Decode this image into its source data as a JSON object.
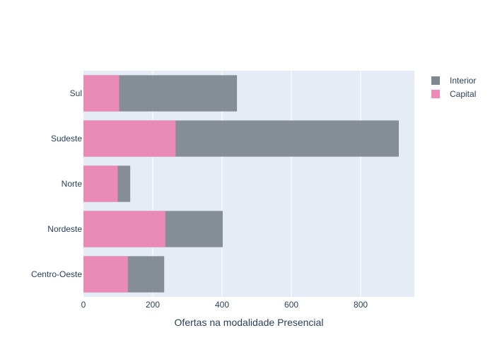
{
  "chart_data": {
    "type": "bar",
    "orientation": "horizontal",
    "barmode": "overlay",
    "categories": [
      "Centro-Oeste",
      "Nordeste",
      "Norte",
      "Sudeste",
      "Sul"
    ],
    "series": [
      {
        "name": "Interior",
        "values": [
          233,
          402,
          135,
          910,
          443
        ]
      },
      {
        "name": "Capital",
        "values": [
          128,
          236,
          99,
          266,
          103
        ]
      }
    ],
    "title": "",
    "xlabel": "Ofertas na modalidade Presencial",
    "ylabel": "",
    "xlim": [
      0,
      955
    ],
    "xticks": [
      0,
      200,
      400,
      600,
      800
    ],
    "grid": true,
    "legend_position": "top-right",
    "colors": {
      "Interior": "#7f8891",
      "Capital": "#ef8bb7",
      "plot_background": "#e5ecf6",
      "grid": "#ffffff",
      "text": "#2a3f5f"
    }
  }
}
